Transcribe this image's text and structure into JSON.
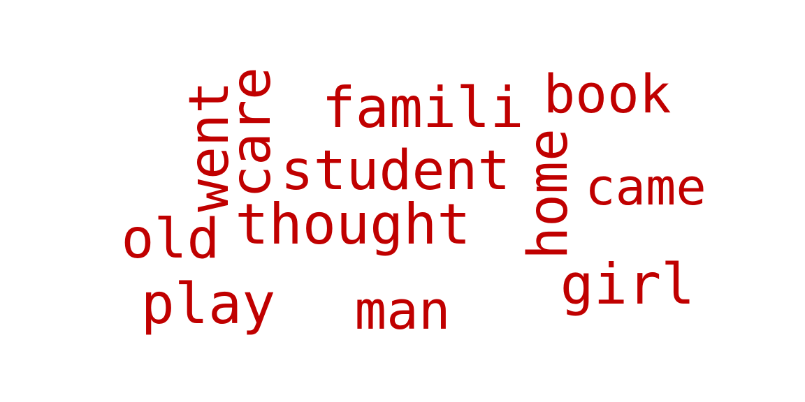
{
  "colors": {
    "word": "#c00000",
    "background": "#ffffff"
  },
  "words": [
    {
      "text": "famili",
      "orientation": "horizontal"
    },
    {
      "text": "book",
      "orientation": "horizontal"
    },
    {
      "text": "went",
      "orientation": "vertical"
    },
    {
      "text": "care",
      "orientation": "vertical"
    },
    {
      "text": "student",
      "orientation": "horizontal"
    },
    {
      "text": "home",
      "orientation": "vertical"
    },
    {
      "text": "came",
      "orientation": "horizontal"
    },
    {
      "text": "thought",
      "orientation": "horizontal"
    },
    {
      "text": "old",
      "orientation": "horizontal"
    },
    {
      "text": "girl",
      "orientation": "horizontal"
    },
    {
      "text": "play",
      "orientation": "horizontal"
    },
    {
      "text": "man",
      "orientation": "horizontal"
    }
  ]
}
